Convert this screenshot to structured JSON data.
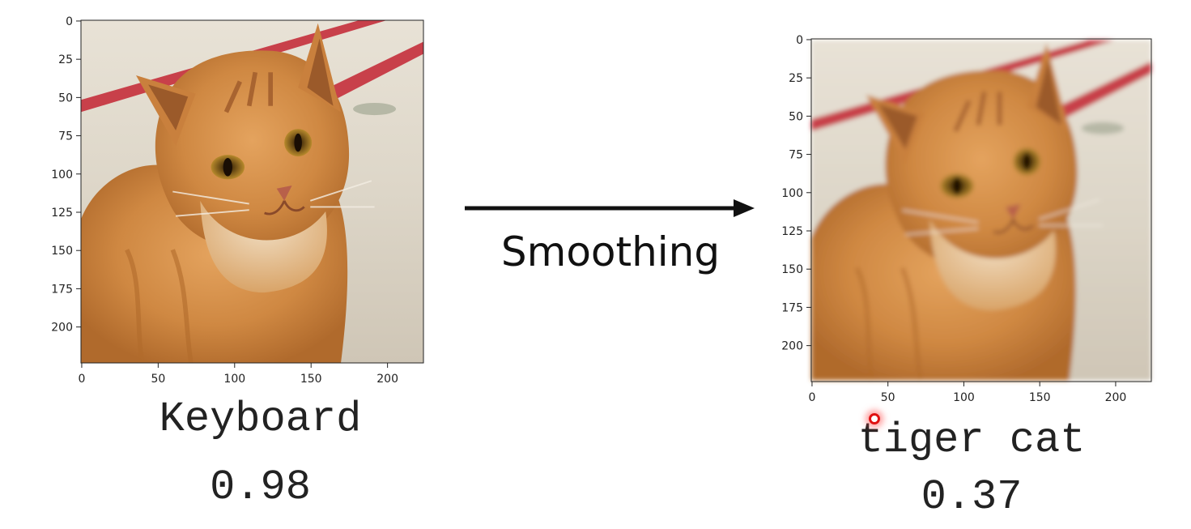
{
  "left_panel": {
    "y_ticks": [
      "0",
      "25",
      "50",
      "75",
      "100",
      "125",
      "150",
      "175",
      "200"
    ],
    "x_ticks": [
      "0",
      "50",
      "100",
      "150",
      "200"
    ],
    "prediction": {
      "label": "Keyboard",
      "score": "0.98"
    }
  },
  "right_panel": {
    "y_ticks": [
      "0",
      "25",
      "50",
      "75",
      "100",
      "125",
      "150",
      "175",
      "200"
    ],
    "x_ticks": [
      "0",
      "50",
      "100",
      "150",
      "200"
    ],
    "prediction": {
      "label": "tiger cat",
      "score": "0.37"
    }
  },
  "arrow": {
    "label": "Smoothing"
  },
  "colors": {
    "stripe": "#c8404a",
    "fur": "#cf8b45",
    "background": "#e3ddd0"
  }
}
